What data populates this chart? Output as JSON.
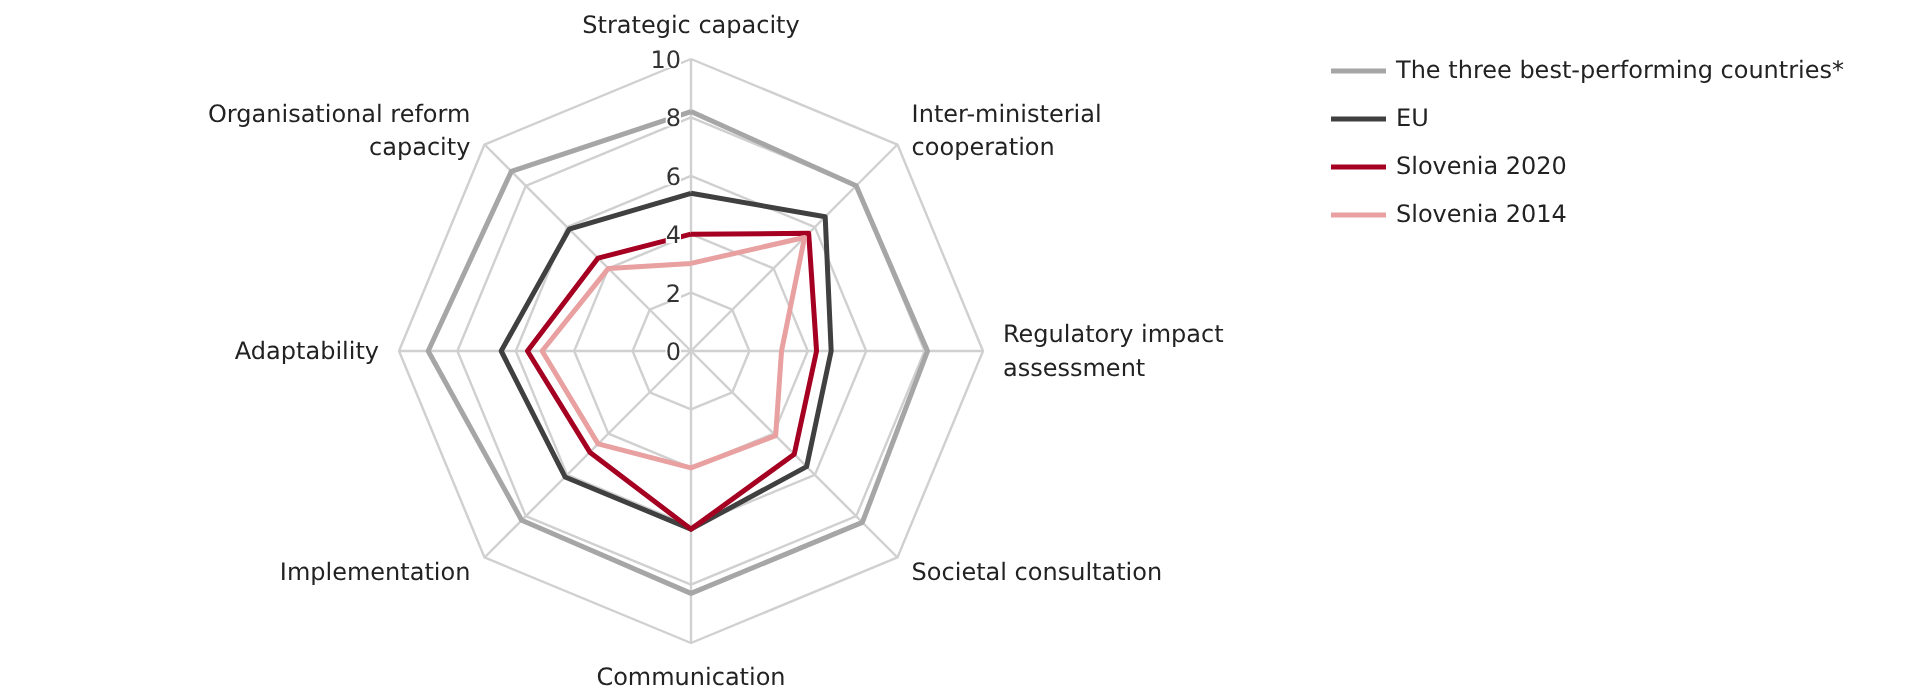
{
  "chart_data": {
    "type": "radar",
    "categories": [
      "Strategic capacity",
      "Inter-ministerial cooperation",
      "Regulatory impact assessment",
      "Societal consultation",
      "Communication",
      "Implementation",
      "Adaptability",
      "Organisational reform capacity"
    ],
    "ylim": [
      0,
      10
    ],
    "yticks": [
      0,
      2,
      4,
      6,
      8,
      10
    ],
    "legend": "right",
    "grid": true,
    "series": [
      {
        "name": "The three best-performing countries*",
        "color": "#a6a6a6",
        "values": [
          8.2,
          8.0,
          8.1,
          8.3,
          8.3,
          8.2,
          9.0,
          8.7
        ]
      },
      {
        "name": "EU",
        "color": "#404040",
        "values": [
          5.4,
          6.5,
          4.8,
          5.6,
          6.1,
          6.1,
          6.5,
          5.9
        ]
      },
      {
        "name": "Slovenia 2020",
        "color": "#a50021",
        "values": [
          4.0,
          5.7,
          4.3,
          5.0,
          6.1,
          4.9,
          5.6,
          4.5
        ]
      },
      {
        "name": "Slovenia 2014",
        "color": "#e8a0a0",
        "values": [
          3.0,
          5.5,
          3.1,
          4.1,
          4.0,
          4.5,
          5.1,
          4.0
        ]
      }
    ]
  }
}
